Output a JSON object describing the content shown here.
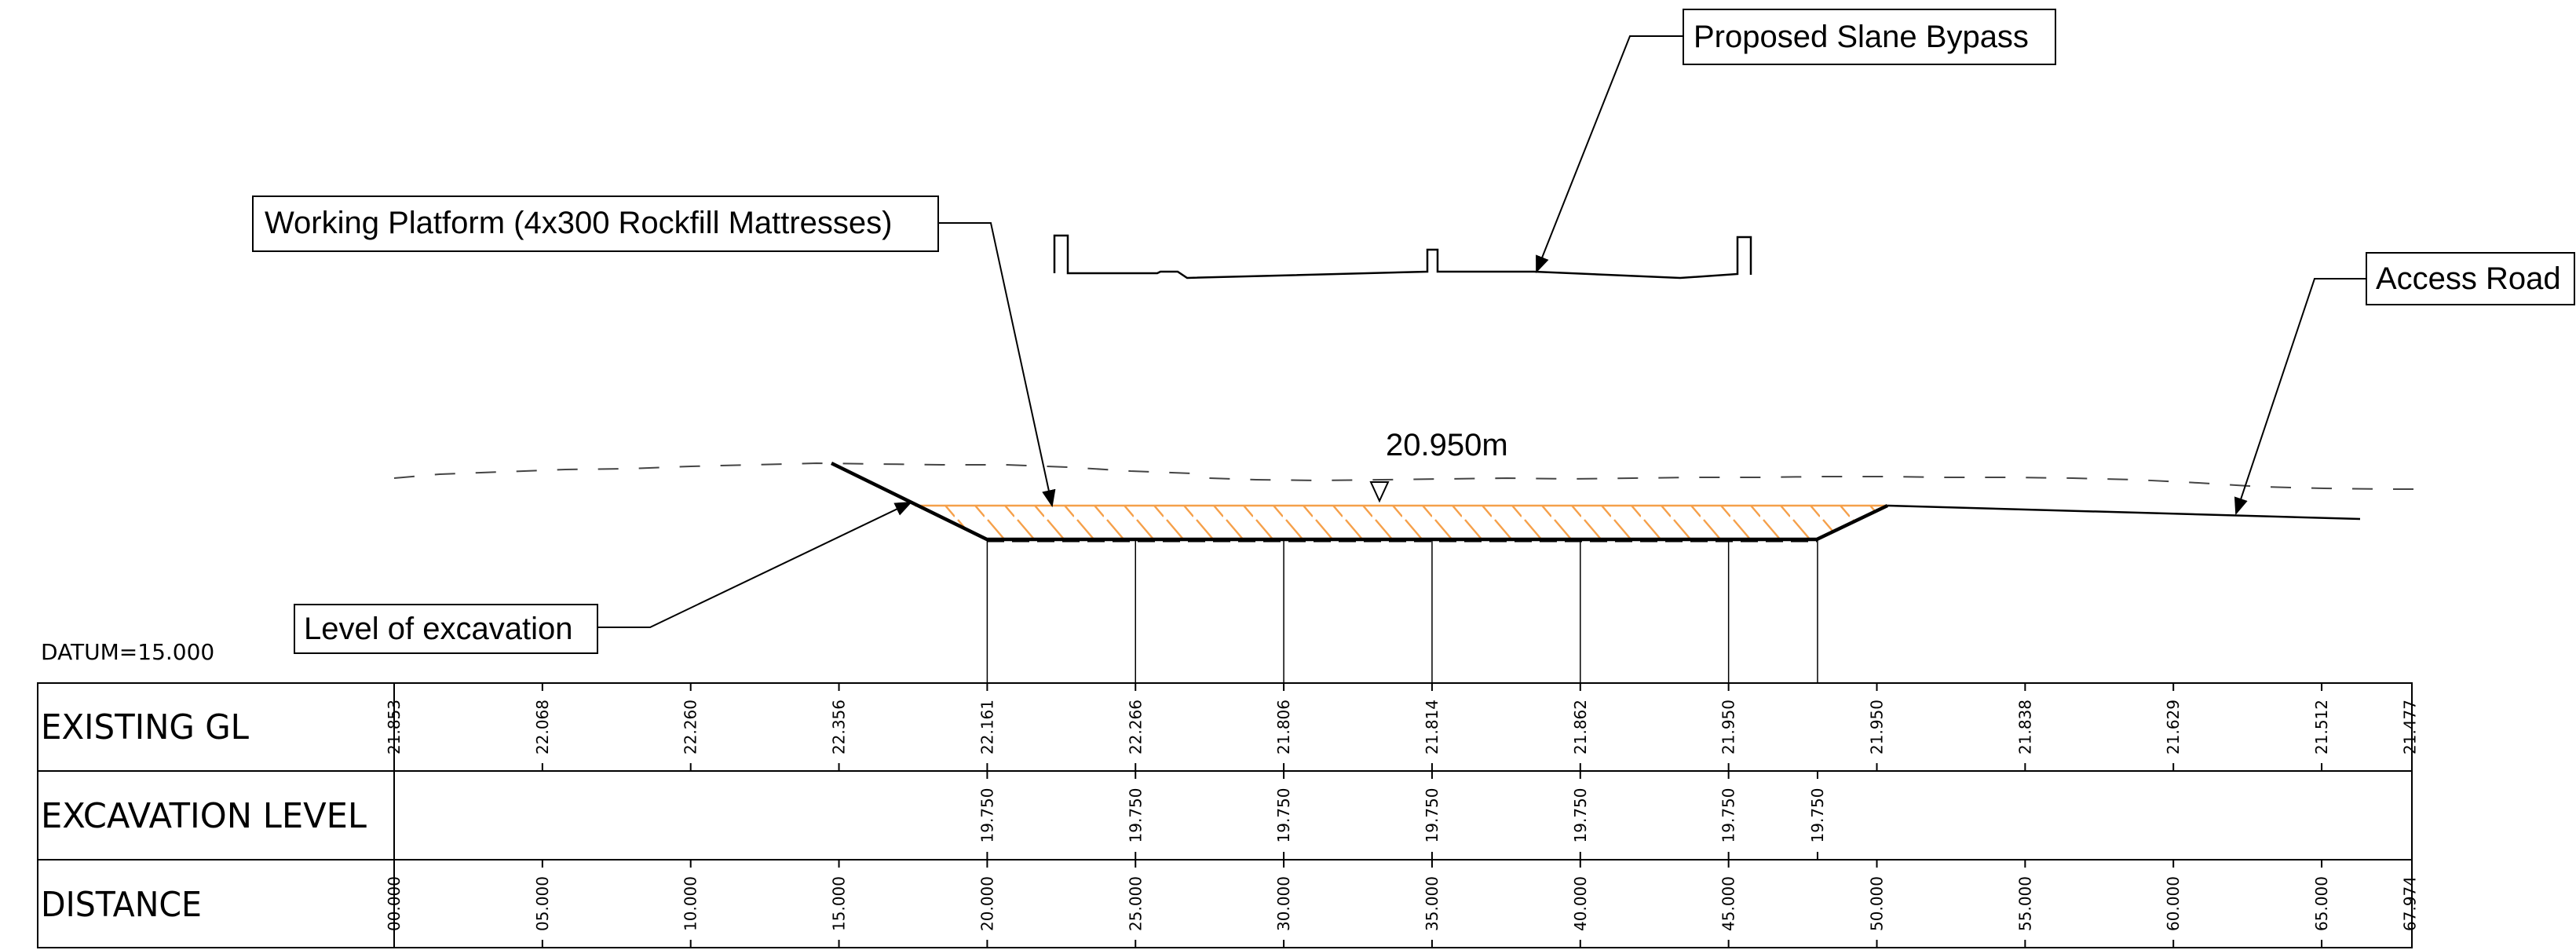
{
  "labels": {
    "bypass": "Proposed Slane Bypass",
    "platform": "Working Platform (4x300 Rockfill Mattresses)",
    "access": "Access Road",
    "excavation": "Level of excavation",
    "elevation": "20.950m",
    "datum": "DATUM=15.000"
  },
  "table": {
    "rows": [
      "EXISTING GL",
      "EXCAVATION LEVEL",
      "DISTANCE"
    ],
    "existing_gl": [
      {
        "d": 0,
        "v": "21.853"
      },
      {
        "d": 5,
        "v": "22.068"
      },
      {
        "d": 10,
        "v": "22.260"
      },
      {
        "d": 15,
        "v": "22.356"
      },
      {
        "d": 20,
        "v": "22.161"
      },
      {
        "d": 25,
        "v": "22.266"
      },
      {
        "d": 30,
        "v": "21.806"
      },
      {
        "d": 35,
        "v": "21.814"
      },
      {
        "d": 40,
        "v": "21.862"
      },
      {
        "d": 45,
        "v": "21.950"
      },
      {
        "d": 50,
        "v": "21.950"
      },
      {
        "d": 55,
        "v": "21.838"
      },
      {
        "d": 60,
        "v": "21.629"
      },
      {
        "d": 65,
        "v": "21.512"
      },
      {
        "d": 67.974,
        "v": "21.477"
      }
    ],
    "excavation_level": [
      {
        "d": 20,
        "v": "19.750"
      },
      {
        "d": 25,
        "v": "19.750"
      },
      {
        "d": 30,
        "v": "19.750"
      },
      {
        "d": 35,
        "v": "19.750"
      },
      {
        "d": 40,
        "v": "19.750"
      },
      {
        "d": 45,
        "v": "19.750"
      },
      {
        "d": 48,
        "v": "19.750"
      }
    ],
    "distance": [
      {
        "d": 0,
        "v": "00.000"
      },
      {
        "d": 5,
        "v": "05.000"
      },
      {
        "d": 10,
        "v": "10.000"
      },
      {
        "d": 15,
        "v": "15.000"
      },
      {
        "d": 20,
        "v": "20.000"
      },
      {
        "d": 25,
        "v": "25.000"
      },
      {
        "d": 30,
        "v": "30.000"
      },
      {
        "d": 35,
        "v": "35.000"
      },
      {
        "d": 40,
        "v": "40.000"
      },
      {
        "d": 45,
        "v": "45.000"
      },
      {
        "d": 50,
        "v": "50.000"
      },
      {
        "d": 55,
        "v": "55.000"
      },
      {
        "d": 60,
        "v": "60.000"
      },
      {
        "d": 65,
        "v": "65.000"
      },
      {
        "d": 67.974,
        "v": "67.974"
      }
    ]
  },
  "colors": {
    "hatch": "#f5a04a",
    "line": "#000000",
    "ground": "#444444"
  }
}
